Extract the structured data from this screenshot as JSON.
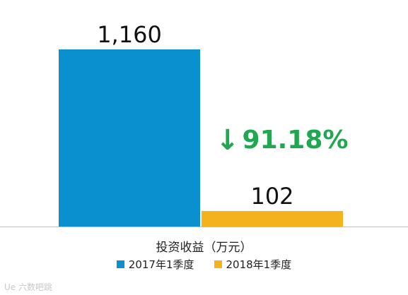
{
  "chart_data": {
    "type": "bar",
    "categories": [
      "2017年1季度",
      "2018年1季度"
    ],
    "values": [
      1160,
      102
    ],
    "value_labels": [
      "1,160",
      "102"
    ],
    "colors": [
      "#0a8fcf",
      "#f4b31c"
    ],
    "xlabel": "投资收益（万元）",
    "ylim": [
      0,
      1160
    ],
    "grid": false,
    "legend_position": "bottom"
  },
  "annotation": {
    "arrow": "↓",
    "text": "91.18%",
    "color": "#1fa84f"
  },
  "watermark": "Ue 六数吧跳"
}
